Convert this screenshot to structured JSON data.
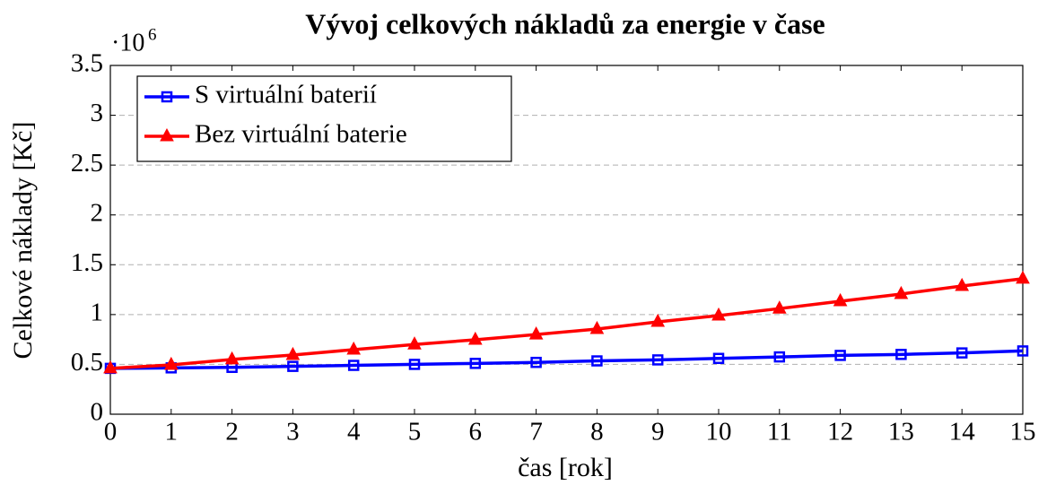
{
  "chart_data": {
    "type": "line",
    "title": "Vývoj celkových nákladů za energie v čase",
    "x_label": "čas [rok]",
    "y_label": "Celkové náklady [Kč]",
    "y_scale_label": "·10",
    "y_scale_exponent": "6",
    "x": [
      0,
      1,
      2,
      3,
      4,
      5,
      6,
      7,
      8,
      9,
      10,
      11,
      12,
      13,
      14,
      15
    ],
    "series": [
      {
        "name": "S virtuální baterií",
        "color": "#0000ff",
        "marker": "square",
        "values": [
          0.46,
          0.465,
          0.47,
          0.48,
          0.49,
          0.5,
          0.51,
          0.52,
          0.535,
          0.545,
          0.56,
          0.575,
          0.59,
          0.6,
          0.615,
          0.635
        ]
      },
      {
        "name": "Bez virtuální baterie",
        "color": "#ff0000",
        "marker": "triangle",
        "values": [
          0.46,
          0.495,
          0.55,
          0.594,
          0.648,
          0.7,
          0.747,
          0.8,
          0.855,
          0.927,
          0.99,
          1.06,
          1.134,
          1.206,
          1.287,
          1.36
        ]
      }
    ],
    "xlim": [
      0,
      15
    ],
    "xticks": [
      0,
      1,
      2,
      3,
      4,
      5,
      6,
      7,
      8,
      9,
      10,
      11,
      12,
      13,
      14,
      15
    ],
    "ylim": [
      0,
      3.5
    ],
    "yticks": [
      0,
      0.5,
      1,
      1.5,
      2,
      2.5,
      3,
      3.5
    ],
    "grid": true,
    "legend": "upper-left"
  }
}
